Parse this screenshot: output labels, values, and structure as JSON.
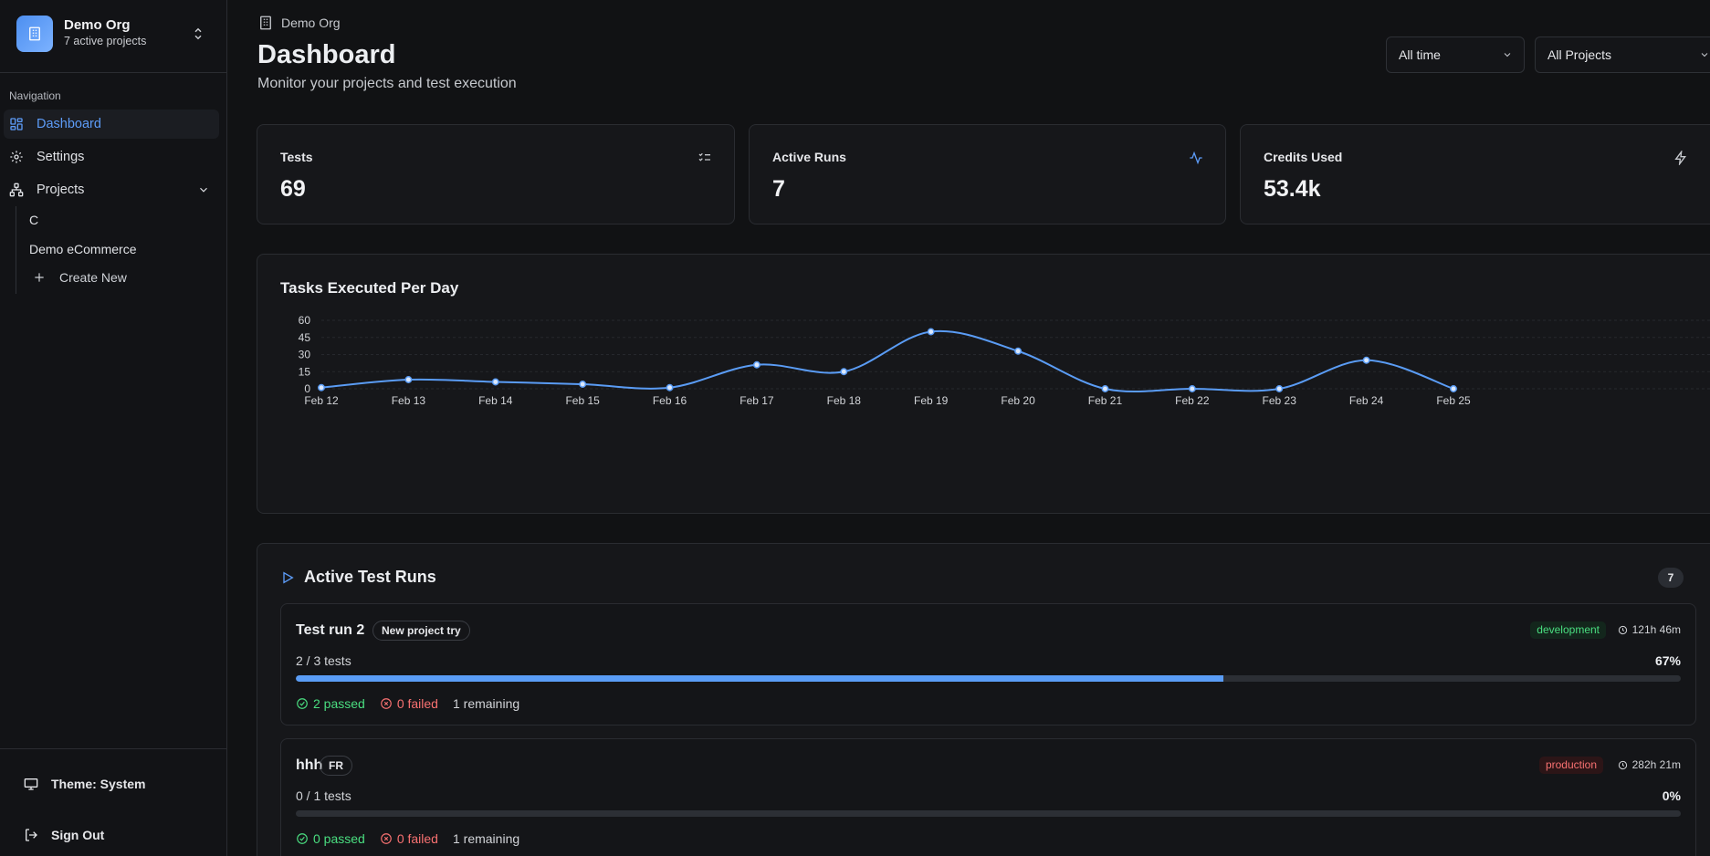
{
  "org": {
    "name": "Demo Org",
    "subtitle": "7 active projects"
  },
  "nav": {
    "heading": "Navigation",
    "items": [
      {
        "label": "Dashboard",
        "icon": "layout-grid-icon"
      },
      {
        "label": "Settings",
        "icon": "gear-icon"
      },
      {
        "label": "Projects",
        "icon": "network-icon"
      }
    ],
    "projects": [
      "C",
      "Demo eCommerce"
    ],
    "create_label": "Create New"
  },
  "footer": {
    "theme_label": "Theme: System",
    "signout_label": "Sign Out"
  },
  "breadcrumb": "Demo Org",
  "header": {
    "title": "Dashboard",
    "subtitle": "Monitor your projects and test execution"
  },
  "filters": {
    "time": "All time",
    "project": "All Projects"
  },
  "stats": [
    {
      "label": "Tests",
      "value": "69",
      "icon": "list-checks-icon"
    },
    {
      "label": "Active Runs",
      "value": "7",
      "icon": "activity-icon"
    },
    {
      "label": "Credits Used",
      "value": "53.4k",
      "icon": "zap-icon"
    }
  ],
  "chart_data": {
    "type": "line",
    "title": "Tasks Executed Per Day",
    "xlabel": "",
    "ylabel": "",
    "x": [
      "Feb 12",
      "Feb 13",
      "Feb 14",
      "Feb 15",
      "Feb 16",
      "Feb 17",
      "Feb 18",
      "Feb 19",
      "Feb 20",
      "Feb 21",
      "Feb 22",
      "Feb 23",
      "Feb 24",
      "Feb 25"
    ],
    "series": [
      {
        "values": [
          1,
          8,
          6,
          4,
          1,
          21,
          15,
          50,
          33,
          0,
          0,
          0,
          25,
          0
        ]
      }
    ],
    "yticks": [
      0,
      15,
      30,
      45,
      60
    ],
    "ylim": [
      0,
      60
    ],
    "grid": true,
    "color": "#5a9cf5"
  },
  "runs": {
    "title": "Active Test Runs",
    "count": "7",
    "items": [
      {
        "name": "Test run 2",
        "tag": "New project try",
        "env": "development",
        "env_type": "dev",
        "duration": "121h 46m",
        "progress_text": "2 / 3 tests",
        "percent": "67%",
        "fraction": 0.67,
        "passed": "2 passed",
        "failed": "0 failed",
        "remaining": "1 remaining"
      },
      {
        "name": "hhh",
        "tag": "FR",
        "env": "production",
        "env_type": "prod",
        "duration": "282h 21m",
        "progress_text": "0 / 1 tests",
        "percent": "0%",
        "fraction": 0,
        "passed": "0 passed",
        "failed": "0 failed",
        "remaining": "1 remaining"
      }
    ]
  }
}
